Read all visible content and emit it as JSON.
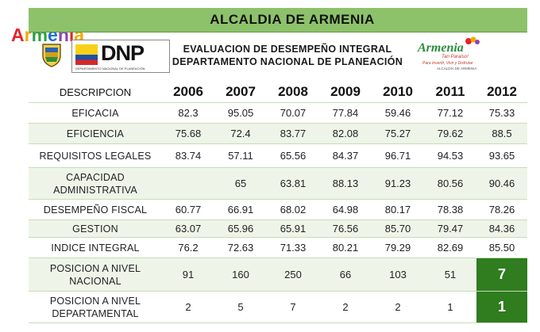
{
  "corner_logo": {
    "text": "Armenia",
    "colors": [
      "#e5242b",
      "#f2a900",
      "#2ea043",
      "#1f6fd0",
      "#8e44ad"
    ]
  },
  "title": "ALCALDIA DE ARMENIA",
  "dnp_logo": {
    "text": "DNP",
    "subtext": "DEPARTAMENTO NACIONAL DE PLANEACIÓN"
  },
  "heading": {
    "line1": "EVALUACION DE DESEMPEÑO INTEGRAL",
    "line2": "DEPARTAMENTO NACIONAL DE PLANEACIÓN"
  },
  "right_logo": {
    "text": "Armenia",
    "sub": "Tan Paraíso!",
    "tagline": "Para Invertir, Vivir y Disfrutar",
    "city": "ALCALDÍA DE ARMENIA"
  },
  "table": {
    "header": [
      "DESCRIPCION",
      "2006",
      "2007",
      "2008",
      "2009",
      "2010",
      "2011",
      "2012"
    ],
    "rows": [
      {
        "desc": "EFICACIA",
        "values": [
          "82.3",
          "95.05",
          "70.07",
          "77.84",
          "59.46",
          "77.12",
          "75.33"
        ]
      },
      {
        "desc": "EFICIENCIA",
        "values": [
          "75.68",
          "72.4",
          "83.77",
          "82.08",
          "75.27",
          "79.62",
          "88.5"
        ]
      },
      {
        "desc": "REQUISITOS LEGALES",
        "values": [
          "83.74",
          "57.11",
          "65.56",
          "84.37",
          "96.71",
          "94.53",
          "93.65"
        ]
      },
      {
        "desc": "CAPACIDAD ADMINISTRATIVA",
        "values": [
          "",
          "65",
          "63.81",
          "88.13",
          "91.23",
          "80.56",
          "90.46"
        ]
      },
      {
        "desc": "DESEMPEÑO FISCAL",
        "values": [
          "60.77",
          "66.91",
          "68.02",
          "64.98",
          "80.17",
          "78.38",
          "78.26"
        ]
      },
      {
        "desc": "GESTION",
        "values": [
          "63.07",
          "65.96",
          "65.91",
          "76.56",
          "85.70",
          "79.47",
          "84.36"
        ]
      },
      {
        "desc": "INDICE INTEGRAL",
        "values": [
          "76.2",
          "72.63",
          "71.33",
          "80.21",
          "79.29",
          "82.69",
          "85.50"
        ]
      },
      {
        "desc": "POSICION A NIVEL NACIONAL",
        "values": [
          "91",
          "160",
          "250",
          "66",
          "103",
          "51",
          "7"
        ]
      },
      {
        "desc": "POSICION A NIVEL DEPARTAMENTAL",
        "values": [
          "2",
          "5",
          "7",
          "2",
          "2",
          "1",
          "1"
        ]
      }
    ]
  }
}
